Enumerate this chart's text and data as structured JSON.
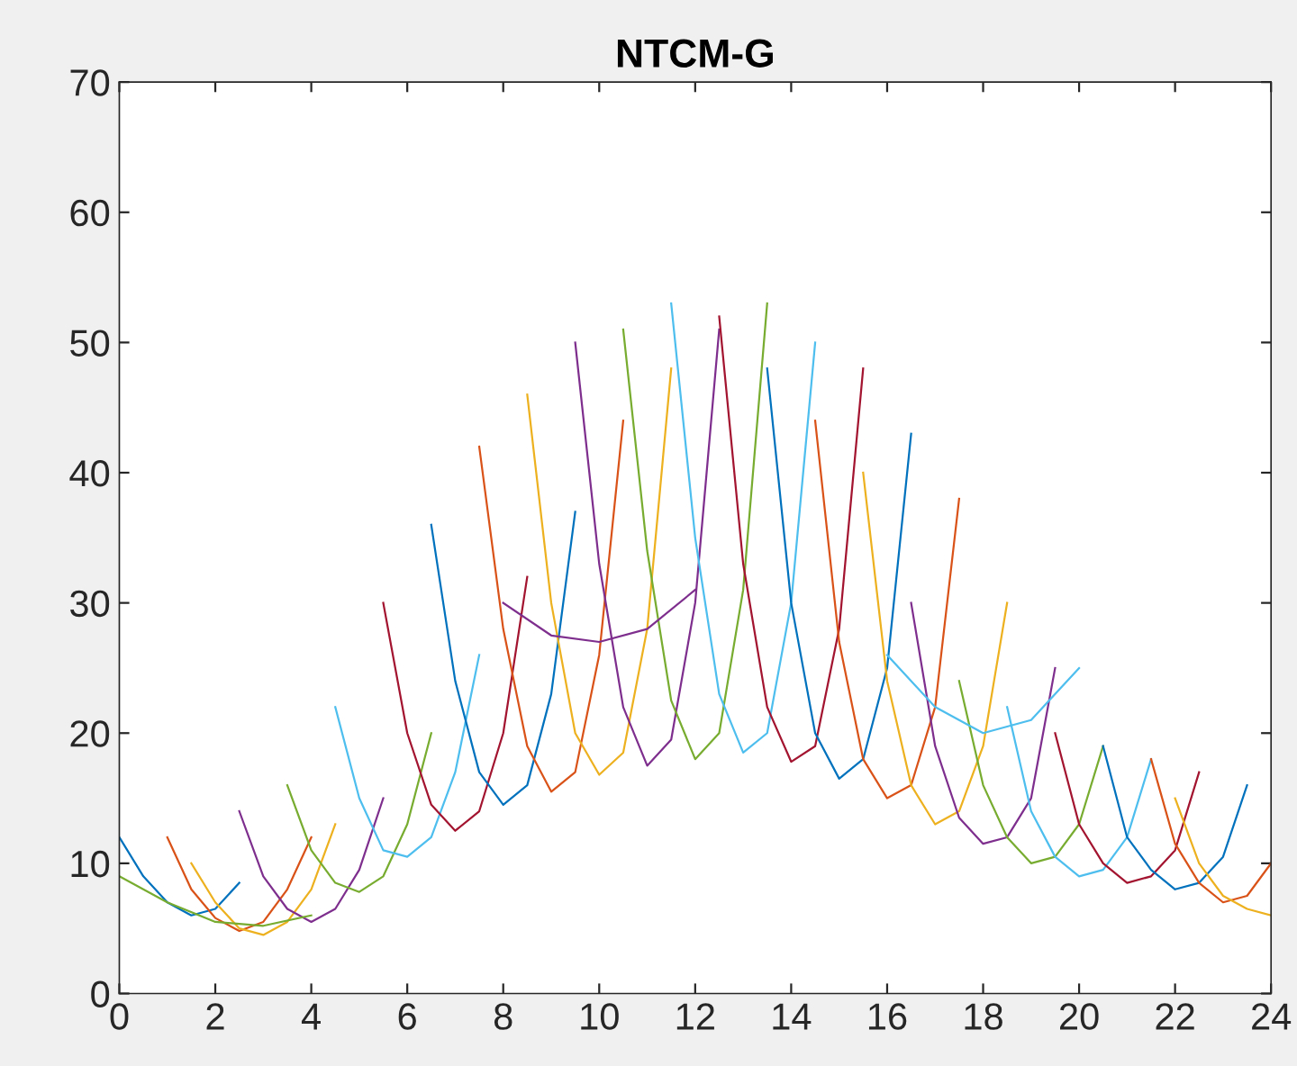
{
  "chart_data": {
    "type": "line",
    "title": "NTCM-G",
    "xlim": [
      0,
      24
    ],
    "xticks": [
      0,
      2,
      4,
      6,
      8,
      10,
      12,
      14,
      16,
      18,
      20,
      22,
      24
    ],
    "ylim": [
      0,
      70
    ],
    "yticks": [
      0,
      10,
      20,
      30,
      40,
      50,
      60,
      70
    ],
    "grid": false,
    "marker": "none",
    "line_style": "solid",
    "series": [
      {
        "color": "#0072bd",
        "x": [
          0,
          0.5,
          1,
          1.5,
          2,
          2.5
        ],
        "values": [
          12,
          9,
          7,
          6,
          6.5,
          8.5
        ]
      },
      {
        "color": "#d95319",
        "x": [
          1,
          1.5,
          2,
          2.5,
          3,
          3.5,
          4
        ],
        "values": [
          12,
          8,
          5.8,
          4.8,
          5.5,
          8,
          12
        ]
      },
      {
        "color": "#edb120",
        "x": [
          1.5,
          2,
          2.5,
          3,
          3.5,
          4,
          4.5
        ],
        "values": [
          10,
          7,
          5,
          4.5,
          5.5,
          8,
          13
        ]
      },
      {
        "color": "#7e2f8e",
        "x": [
          2.5,
          3,
          3.5,
          4,
          4.5,
          5,
          5.5
        ],
        "values": [
          14,
          9,
          6.5,
          5.5,
          6.5,
          9.5,
          15
        ]
      },
      {
        "color": "#77ac30",
        "x": [
          3.5,
          4,
          4.5,
          5,
          5.5,
          6,
          6.5
        ],
        "values": [
          16,
          11,
          8.5,
          7.8,
          9,
          13,
          20
        ]
      },
      {
        "color": "#4dbeee",
        "x": [
          4.5,
          5,
          5.5,
          6,
          6.5,
          7,
          7.5
        ],
        "values": [
          22,
          15,
          11,
          10.5,
          12,
          17,
          26
        ]
      },
      {
        "color": "#a2142f",
        "x": [
          5.5,
          6,
          6.5,
          7,
          7.5,
          8,
          8.5
        ],
        "values": [
          30,
          20,
          14.5,
          12.5,
          14,
          20,
          32
        ]
      },
      {
        "color": "#0072bd",
        "x": [
          6.5,
          7,
          7.5,
          8,
          8.5,
          9,
          9.5
        ],
        "values": [
          36,
          24,
          17,
          14.5,
          16,
          23,
          37
        ]
      },
      {
        "color": "#d95319",
        "x": [
          7.5,
          8,
          8.5,
          9,
          9.5,
          10,
          10.5
        ],
        "values": [
          42,
          28,
          19,
          15.5,
          17,
          26,
          44
        ]
      },
      {
        "color": "#edb120",
        "x": [
          8.5,
          9,
          9.5,
          10,
          10.5,
          11,
          11.5
        ],
        "values": [
          46,
          30,
          20,
          16.8,
          18.5,
          28,
          48
        ]
      },
      {
        "color": "#7e2f8e",
        "x": [
          9.5,
          10,
          10.5,
          11,
          11.5,
          12,
          12.5
        ],
        "values": [
          50,
          33,
          22,
          17.5,
          19.5,
          30,
          51
        ]
      },
      {
        "color": "#77ac30",
        "x": [
          10.5,
          11,
          11.5,
          12,
          12.5,
          13,
          13.5
        ],
        "values": [
          51,
          34,
          22.5,
          18,
          20,
          31,
          53
        ]
      },
      {
        "color": "#4dbeee",
        "x": [
          11.5,
          12,
          12.5,
          13,
          13.5,
          14,
          14.5
        ],
        "values": [
          53,
          35,
          23,
          18.5,
          20,
          30,
          50
        ]
      },
      {
        "color": "#a2142f",
        "x": [
          12.5,
          13,
          13.5,
          14,
          14.5,
          15,
          15.5
        ],
        "values": [
          52,
          33,
          22,
          17.8,
          19,
          28,
          48
        ]
      },
      {
        "color": "#0072bd",
        "x": [
          13.5,
          14,
          14.5,
          15,
          15.5,
          16,
          16.5
        ],
        "values": [
          48,
          30,
          20,
          16.5,
          18,
          25,
          43
        ]
      },
      {
        "color": "#d95319",
        "x": [
          14.5,
          15,
          15.5,
          16,
          16.5,
          17,
          17.5
        ],
        "values": [
          44,
          27,
          18,
          15,
          16,
          22,
          38
        ]
      },
      {
        "color": "#edb120",
        "x": [
          15.5,
          16,
          16.5,
          17,
          17.5,
          18,
          18.5
        ],
        "values": [
          40,
          24,
          16,
          13,
          14,
          19,
          30
        ]
      },
      {
        "color": "#7e2f8e",
        "x": [
          16.5,
          17,
          17.5,
          18,
          18.5,
          19,
          19.5
        ],
        "values": [
          30,
          19,
          13.5,
          11.5,
          12,
          15,
          25
        ]
      },
      {
        "color": "#77ac30",
        "x": [
          17.5,
          18,
          18.5,
          19,
          19.5,
          20,
          20.5
        ],
        "values": [
          24,
          16,
          12,
          10,
          10.5,
          13,
          19
        ]
      },
      {
        "color": "#4dbeee",
        "x": [
          18.5,
          19,
          19.5,
          20,
          20.5,
          21,
          21.5
        ],
        "values": [
          22,
          14,
          10.5,
          9,
          9.5,
          12,
          18
        ]
      },
      {
        "color": "#a2142f",
        "x": [
          19.5,
          20,
          20.5,
          21,
          21.5,
          22,
          22.5
        ],
        "values": [
          20,
          13,
          10,
          8.5,
          9,
          11,
          17
        ]
      },
      {
        "color": "#0072bd",
        "x": [
          20.5,
          21,
          21.5,
          22,
          22.5,
          23,
          23.5
        ],
        "values": [
          19,
          12,
          9.5,
          8,
          8.5,
          10.5,
          16
        ]
      },
      {
        "color": "#d95319",
        "x": [
          21.5,
          22,
          22.5,
          23,
          23.5,
          24
        ],
        "values": [
          18,
          11.5,
          8.5,
          7,
          7.5,
          10
        ]
      },
      {
        "color": "#edb120",
        "x": [
          22,
          22.5,
          23,
          23.5,
          24
        ],
        "values": [
          15,
          10,
          7.5,
          6.5,
          6
        ]
      },
      {
        "color": "#7e2f8e",
        "x": [
          8,
          9,
          10,
          11,
          12
        ],
        "values": [
          30,
          27.5,
          27,
          28,
          31
        ]
      },
      {
        "color": "#77ac30",
        "x": [
          0,
          1,
          2,
          3,
          4
        ],
        "values": [
          9,
          7,
          5.5,
          5.2,
          6
        ]
      },
      {
        "color": "#4dbeee",
        "x": [
          16,
          17,
          18,
          19,
          20
        ],
        "values": [
          26,
          22,
          20,
          21,
          25
        ]
      }
    ]
  }
}
